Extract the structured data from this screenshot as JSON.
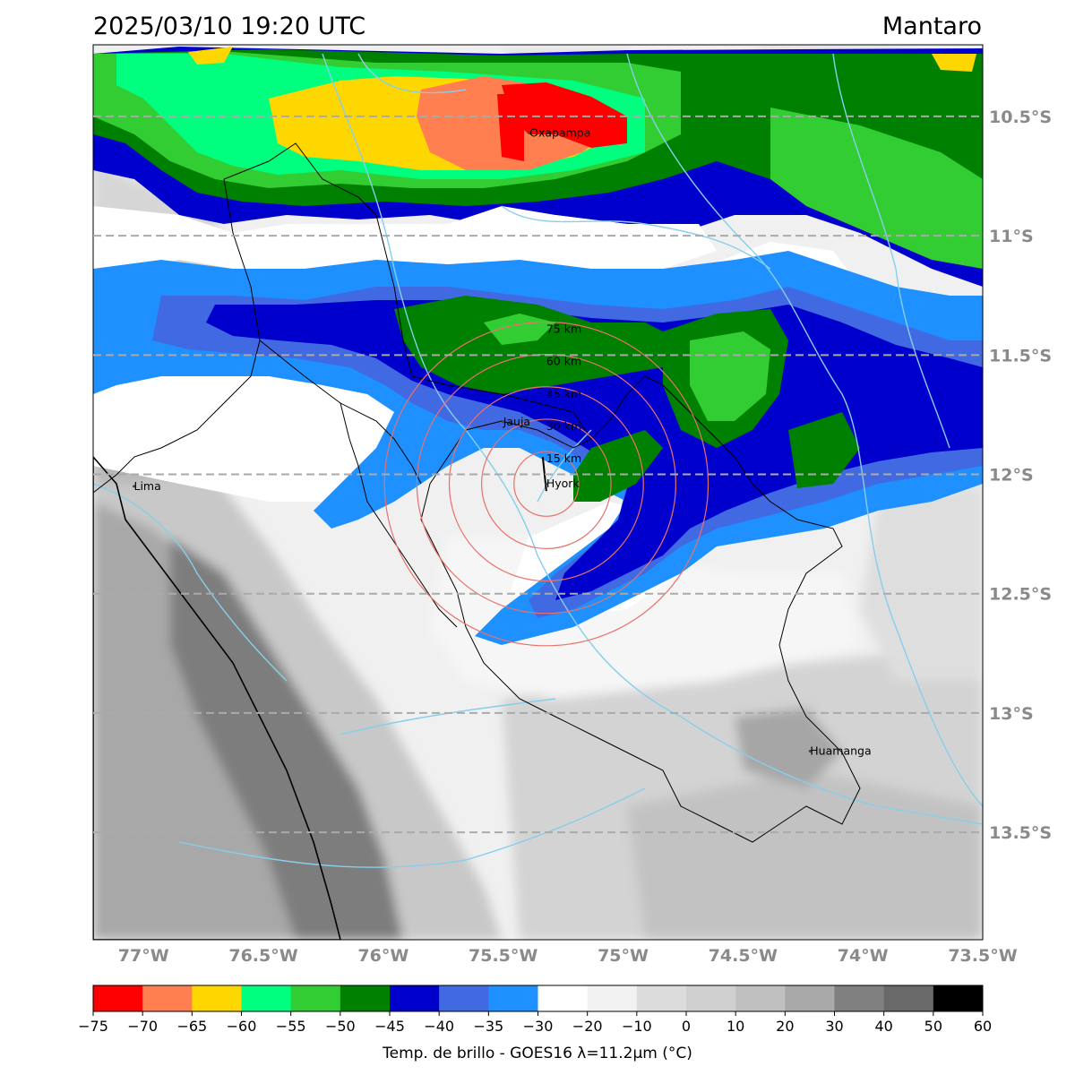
{
  "header": {
    "datetime": "2025/03/10 19:20 UTC",
    "region": "Mantaro"
  },
  "axes": {
    "lon_labels": [
      "77°W",
      "76.5°W",
      "76°W",
      "75.5°W",
      "75°W",
      "74.5°W",
      "74°W",
      "73.5°W"
    ],
    "lon_values": [
      -77,
      -76.5,
      -76,
      -75.5,
      -75,
      -74.5,
      -74,
      -73.5
    ],
    "lat_labels": [
      "10.5°S",
      "11°S",
      "11.5°S",
      "12°S",
      "12.5°S",
      "13°S",
      "13.5°S"
    ],
    "lat_values": [
      -10.5,
      -11,
      -11.5,
      -12,
      -12.5,
      -13,
      -13.5
    ],
    "lon_range": [
      -77.21,
      -73.5
    ],
    "lat_range": [
      -10.2,
      -13.95
    ],
    "gridline_color": "#aaaaaa"
  },
  "cities": [
    {
      "name": "Oxapampa",
      "lon": -75.39,
      "lat": -10.57
    },
    {
      "name": "Jauja",
      "lon": -75.5,
      "lat": -11.78
    },
    {
      "name": "Hyork",
      "lon": -75.32,
      "lat": -12.04
    },
    {
      "name": "Lima",
      "lon": -77.04,
      "lat": -12.05
    },
    {
      "name": "Huamanga",
      "lon": -74.22,
      "lat": -13.16
    }
  ],
  "range_rings": {
    "center": {
      "lon": -75.32,
      "lat": -12.04
    },
    "labels": [
      "15 km",
      "30 km",
      "45 km",
      "60 km",
      "75 km"
    ],
    "color": "#e8716d"
  },
  "colorbar": {
    "title": "Temp. de brillo - GOES16 λ=11.2μm (°C)",
    "ticks": [
      "−75",
      "−70",
      "−65",
      "−60",
      "−55",
      "−50",
      "−45",
      "−40",
      "−35",
      "−30",
      "−20",
      "−10",
      "0",
      "10",
      "20",
      "30",
      "40",
      "50",
      "60"
    ],
    "colors": [
      "#ff0000",
      "#ff7f50",
      "#ffd700",
      "#00ff7f",
      "#32cd32",
      "#008000",
      "#0000cd",
      "#4169e1",
      "#1e90ff",
      "#ffffff",
      "#f2f2f2",
      "#dcdcdc",
      "#d0d0d0",
      "#c0c0c0",
      "#a9a9a9",
      "#808080",
      "#696969",
      "#000000"
    ]
  }
}
